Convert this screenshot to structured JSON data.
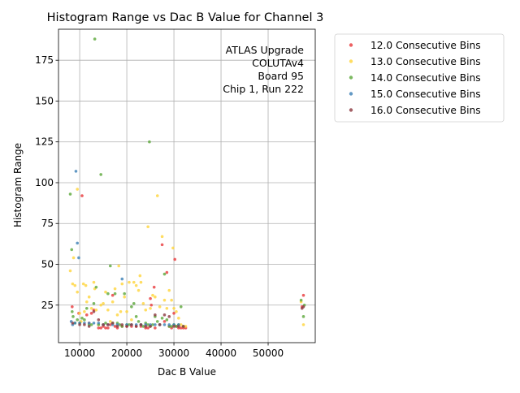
{
  "chart_data": {
    "type": "scatter",
    "title": "Histogram Range vs Dac B Value for Channel 3",
    "xlabel": "Dac B Value",
    "ylabel": "Histogram Range",
    "xlim": [
      5500,
      60000
    ],
    "ylim": [
      2,
      194
    ],
    "xticks": [
      10000,
      20000,
      30000,
      40000,
      50000
    ],
    "yticks": [
      25,
      50,
      75,
      100,
      125,
      150,
      175
    ],
    "grid": true,
    "legend_position": "outside-right-top",
    "annotation": [
      "ATLAS Upgrade",
      "COLUTAv4",
      "Board 95",
      "Chip 1, Run 222"
    ],
    "series": [
      {
        "name": "12.0 Consecutive Bins",
        "color": "#e8383b",
        "points": [
          [
            8400,
            24
          ],
          [
            10500,
            92
          ],
          [
            9800,
            20
          ],
          [
            11500,
            19
          ],
          [
            12000,
            14
          ],
          [
            12500,
            20
          ],
          [
            13000,
            22
          ],
          [
            14000,
            11
          ],
          [
            14500,
            11
          ],
          [
            15000,
            12
          ],
          [
            15500,
            11
          ],
          [
            16000,
            11
          ],
          [
            16500,
            13
          ],
          [
            17000,
            31
          ],
          [
            17500,
            12
          ],
          [
            18000,
            11
          ],
          [
            19000,
            12
          ],
          [
            20000,
            12
          ],
          [
            21000,
            12
          ],
          [
            22000,
            12
          ],
          [
            23000,
            12
          ],
          [
            24000,
            11
          ],
          [
            24500,
            11
          ],
          [
            25000,
            29
          ],
          [
            25200,
            25
          ],
          [
            25800,
            36
          ],
          [
            26000,
            11
          ],
          [
            27000,
            13
          ],
          [
            27500,
            62
          ],
          [
            28000,
            15
          ],
          [
            28500,
            45
          ],
          [
            29000,
            12
          ],
          [
            29500,
            11
          ],
          [
            30000,
            20
          ],
          [
            30200,
            53
          ],
          [
            30500,
            12
          ],
          [
            31000,
            11
          ],
          [
            31500,
            11
          ],
          [
            32000,
            11
          ],
          [
            32500,
            11
          ],
          [
            57500,
            31
          ],
          [
            57200,
            24
          ]
        ]
      },
      {
        "name": "13.0 Consecutive Bins",
        "color": "#ffd43b",
        "points": [
          [
            8000,
            46
          ],
          [
            8500,
            38
          ],
          [
            8700,
            54
          ],
          [
            9000,
            37
          ],
          [
            9500,
            96
          ],
          [
            9500,
            33
          ],
          [
            10000,
            20
          ],
          [
            10300,
            15
          ],
          [
            10800,
            38
          ],
          [
            11000,
            21
          ],
          [
            11300,
            37
          ],
          [
            11500,
            27
          ],
          [
            12000,
            30
          ],
          [
            12500,
            23
          ],
          [
            13000,
            39
          ],
          [
            13200,
            35
          ],
          [
            13500,
            22
          ],
          [
            14000,
            13
          ],
          [
            14500,
            25
          ],
          [
            15000,
            26
          ],
          [
            15500,
            33
          ],
          [
            16000,
            22
          ],
          [
            16500,
            15
          ],
          [
            17000,
            27
          ],
          [
            17500,
            35
          ],
          [
            18000,
            19
          ],
          [
            18300,
            49
          ],
          [
            18700,
            21
          ],
          [
            19000,
            38
          ],
          [
            19500,
            30
          ],
          [
            20000,
            21
          ],
          [
            20500,
            39
          ],
          [
            21000,
            16
          ],
          [
            21500,
            39
          ],
          [
            22000,
            37
          ],
          [
            22500,
            34
          ],
          [
            22800,
            43
          ],
          [
            23000,
            39
          ],
          [
            23500,
            26
          ],
          [
            24000,
            22
          ],
          [
            24500,
            73
          ],
          [
            25000,
            23
          ],
          [
            25500,
            31
          ],
          [
            26000,
            30
          ],
          [
            26500,
            92
          ],
          [
            27000,
            24
          ],
          [
            27500,
            67
          ],
          [
            28000,
            28
          ],
          [
            28500,
            23
          ],
          [
            29000,
            34
          ],
          [
            29500,
            28
          ],
          [
            29800,
            60
          ],
          [
            30000,
            23
          ],
          [
            30500,
            21
          ],
          [
            31000,
            17
          ],
          [
            31500,
            13
          ],
          [
            32000,
            12
          ],
          [
            32500,
            12
          ],
          [
            57000,
            27
          ],
          [
            57500,
            13
          ]
        ]
      },
      {
        "name": "14.0 Consecutive Bins",
        "color": "#5ba83a",
        "points": [
          [
            8000,
            93
          ],
          [
            8300,
            59
          ],
          [
            8400,
            21
          ],
          [
            8600,
            18
          ],
          [
            9000,
            14
          ],
          [
            9500,
            16
          ],
          [
            10000,
            14
          ],
          [
            10500,
            17
          ],
          [
            11000,
            16
          ],
          [
            11500,
            23
          ],
          [
            12000,
            13
          ],
          [
            12500,
            13
          ],
          [
            13000,
            26
          ],
          [
            13200,
            188
          ],
          [
            13500,
            36
          ],
          [
            14000,
            13
          ],
          [
            14500,
            105
          ],
          [
            15000,
            13
          ],
          [
            15500,
            14
          ],
          [
            16000,
            32
          ],
          [
            16500,
            49
          ],
          [
            17000,
            14
          ],
          [
            17500,
            32
          ],
          [
            18000,
            14
          ],
          [
            18500,
            13
          ],
          [
            19000,
            12
          ],
          [
            19500,
            32
          ],
          [
            20000,
            13
          ],
          [
            20500,
            13
          ],
          [
            21000,
            24
          ],
          [
            21500,
            26
          ],
          [
            22000,
            18
          ],
          [
            22500,
            15
          ],
          [
            23000,
            13
          ],
          [
            23500,
            12
          ],
          [
            24000,
            14
          ],
          [
            24500,
            13
          ],
          [
            24800,
            125
          ],
          [
            25000,
            12
          ],
          [
            25500,
            13
          ],
          [
            26000,
            18
          ],
          [
            26500,
            15
          ],
          [
            27000,
            13
          ],
          [
            27500,
            17
          ],
          [
            28000,
            44
          ],
          [
            28500,
            16
          ],
          [
            29000,
            12
          ],
          [
            29500,
            12
          ],
          [
            30000,
            13
          ],
          [
            30500,
            12
          ],
          [
            31000,
            13
          ],
          [
            31500,
            24
          ],
          [
            32000,
            12
          ],
          [
            57000,
            28
          ],
          [
            57500,
            18
          ],
          [
            57700,
            25
          ]
        ]
      },
      {
        "name": "15.0 Consecutive Bins",
        "color": "#3b7fb5",
        "points": [
          [
            8200,
            15
          ],
          [
            8500,
            13
          ],
          [
            9000,
            14
          ],
          [
            9200,
            107
          ],
          [
            9500,
            63
          ],
          [
            9800,
            54
          ],
          [
            10000,
            14
          ],
          [
            11000,
            14
          ],
          [
            12000,
            14
          ],
          [
            13000,
            14
          ],
          [
            14000,
            14
          ],
          [
            15000,
            13
          ],
          [
            16000,
            13
          ],
          [
            17000,
            13
          ],
          [
            18000,
            13
          ],
          [
            19000,
            41
          ],
          [
            20000,
            13
          ],
          [
            21000,
            13
          ],
          [
            22000,
            13
          ],
          [
            23000,
            13
          ],
          [
            24000,
            13
          ],
          [
            25000,
            13
          ],
          [
            26000,
            13
          ],
          [
            27000,
            13
          ],
          [
            28000,
            13
          ],
          [
            29000,
            13
          ],
          [
            30000,
            13
          ],
          [
            31000,
            13
          ]
        ]
      },
      {
        "name": "16.0 Consecutive Bins",
        "color": "#8c3840",
        "points": [
          [
            8500,
            14
          ],
          [
            10000,
            13
          ],
          [
            11000,
            13
          ],
          [
            12000,
            12
          ],
          [
            13000,
            21
          ],
          [
            14000,
            16
          ],
          [
            15000,
            13
          ],
          [
            16000,
            13
          ],
          [
            17000,
            14
          ],
          [
            18000,
            12
          ],
          [
            19000,
            13
          ],
          [
            20000,
            12
          ],
          [
            21000,
            13
          ],
          [
            22000,
            12
          ],
          [
            23000,
            13
          ],
          [
            24000,
            12
          ],
          [
            25000,
            12
          ],
          [
            26000,
            19
          ],
          [
            27000,
            13
          ],
          [
            28000,
            19
          ],
          [
            29000,
            18
          ],
          [
            30000,
            12
          ],
          [
            31000,
            12
          ],
          [
            32000,
            12
          ],
          [
            57200,
            23
          ],
          [
            57500,
            24
          ]
        ]
      }
    ]
  }
}
